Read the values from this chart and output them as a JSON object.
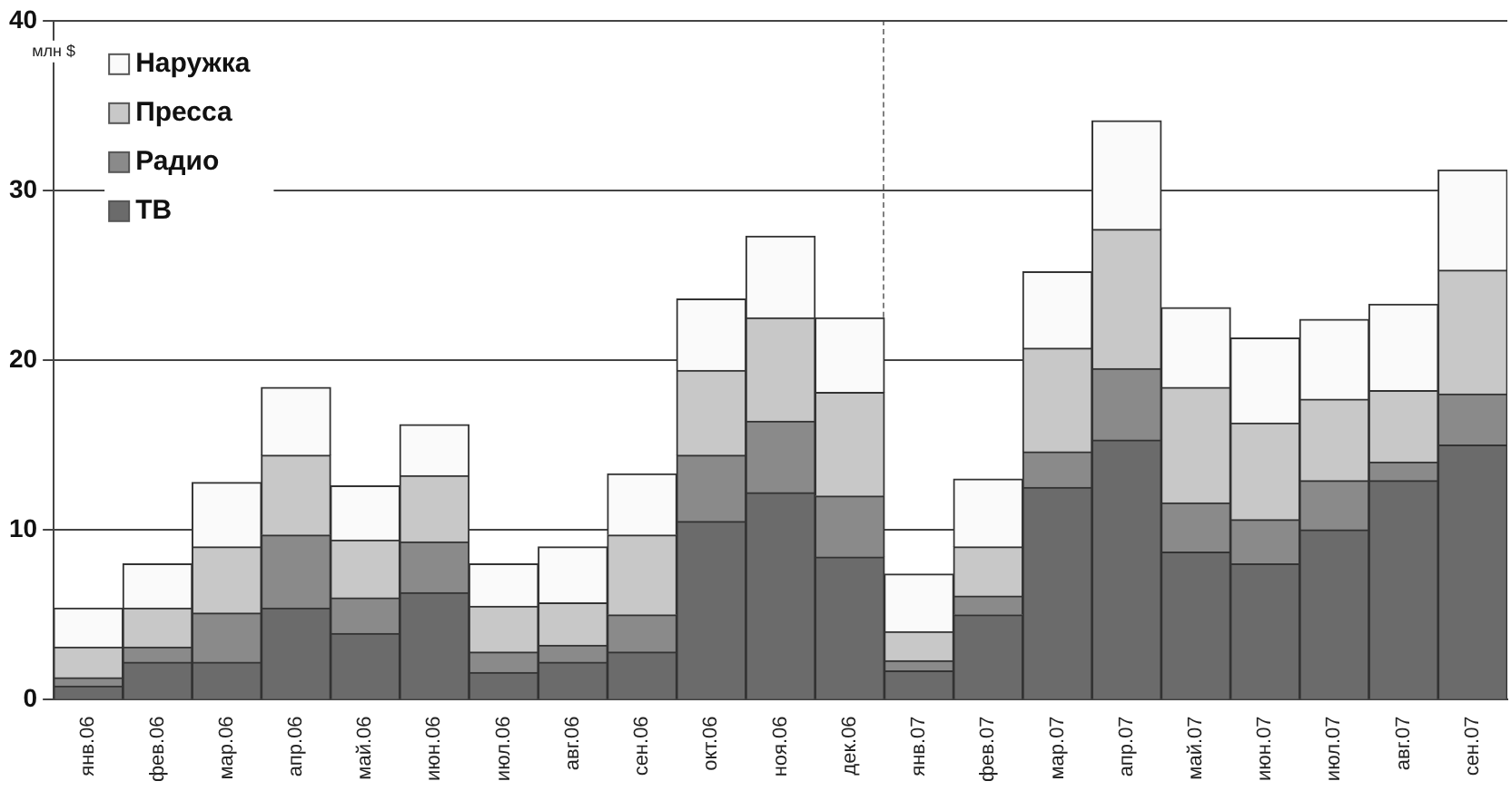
{
  "chart_data": {
    "type": "bar",
    "stacked": true,
    "ylabel": "млн $",
    "categories": [
      "янв.06",
      "фев.06",
      "мар.06",
      "апр.06",
      "май.06",
      "июн.06",
      "июл.06",
      "авг.06",
      "сен.06",
      "окт.06",
      "ноя.06",
      "дек.06",
      "янв.07",
      "фев.07",
      "мар.07",
      "апр.07",
      "май.07",
      "июн.07",
      "июл.07",
      "авг.07",
      "сен.07"
    ],
    "series": [
      {
        "name": "ТВ",
        "color": "#6b6b6b",
        "values": [
          0.8,
          2.2,
          2.2,
          5.4,
          3.9,
          6.3,
          1.6,
          2.2,
          2.8,
          10.5,
          12.2,
          8.4,
          1.7,
          5.0,
          12.5,
          15.3,
          8.7,
          8.0,
          10.0,
          12.9,
          15.0
        ]
      },
      {
        "name": "Радио",
        "color": "#8a8a8a",
        "values": [
          0.5,
          0.9,
          2.9,
          4.3,
          2.1,
          3.0,
          1.2,
          1.0,
          2.2,
          3.9,
          4.2,
          3.6,
          0.6,
          1.1,
          2.1,
          4.2,
          2.9,
          2.6,
          2.9,
          1.1,
          3.0
        ]
      },
      {
        "name": "Пресса",
        "color": "#c8c8c8",
        "values": [
          1.8,
          2.3,
          3.9,
          4.7,
          3.4,
          3.9,
          2.7,
          2.5,
          4.7,
          5.0,
          6.1,
          6.1,
          1.7,
          2.9,
          6.1,
          8.2,
          6.8,
          5.7,
          4.8,
          4.2,
          7.3
        ]
      },
      {
        "name": "Наружка",
        "color": "#fafafa",
        "values": [
          2.3,
          2.6,
          3.8,
          4.0,
          3.2,
          3.0,
          2.5,
          3.3,
          3.6,
          4.2,
          4.8,
          4.4,
          3.4,
          4.0,
          4.5,
          6.4,
          4.7,
          5.0,
          4.7,
          5.1,
          5.9
        ]
      }
    ],
    "ylim": [
      0,
      40
    ],
    "yticks": [
      0,
      10,
      20,
      30,
      40
    ],
    "grid": "y",
    "legend": "top left"
  }
}
